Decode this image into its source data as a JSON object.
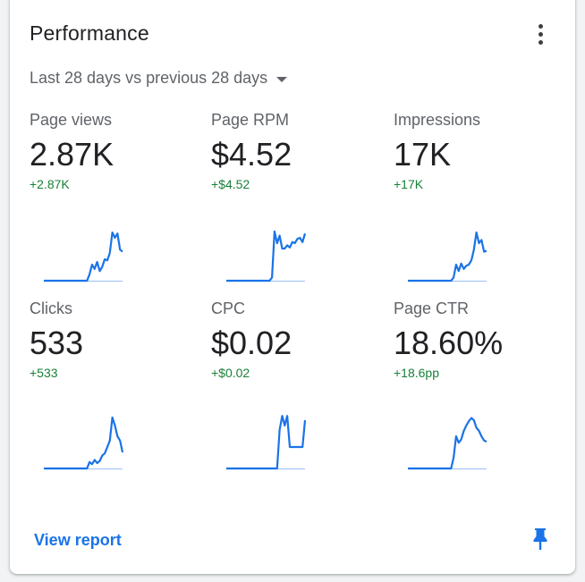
{
  "card": {
    "title": "Performance",
    "range_label": "Last 28 days vs previous 28 days",
    "view_report_label": "View report"
  },
  "metrics": [
    {
      "label": "Page views",
      "value": "2.87K",
      "delta": "+2.87K"
    },
    {
      "label": "Page RPM",
      "value": "$4.52",
      "delta": "+$4.52"
    },
    {
      "label": "Impressions",
      "value": "17K",
      "delta": "+17K"
    },
    {
      "label": "Clicks",
      "value": "533",
      "delta": "+533"
    },
    {
      "label": "CPC",
      "value": "$0.02",
      "delta": "+$0.02"
    },
    {
      "label": "Page CTR",
      "value": "18.60%",
      "delta": "+18.6pp"
    }
  ],
  "colors": {
    "accent": "#1a73e8",
    "line": "#1a73e8",
    "baseline": "#a8c7fa",
    "delta": "#188038"
  },
  "sparklines": [
    [
      0,
      0,
      0,
      0,
      0,
      0,
      0,
      0,
      0,
      0,
      0,
      0,
      0,
      0,
      0,
      0,
      0,
      0,
      12,
      30,
      22,
      35,
      18,
      26,
      40,
      38,
      52,
      90,
      80,
      88,
      58,
      54
    ],
    [
      0,
      0,
      0,
      0,
      0,
      0,
      0,
      0,
      0,
      0,
      0,
      0,
      0,
      0,
      0,
      0,
      0,
      0,
      6,
      92,
      70,
      84,
      60,
      60,
      66,
      62,
      72,
      70,
      78,
      80,
      72,
      88
    ],
    [
      0,
      0,
      0,
      0,
      0,
      0,
      0,
      0,
      0,
      0,
      0,
      0,
      0,
      0,
      0,
      0,
      0,
      0,
      6,
      30,
      18,
      32,
      22,
      28,
      30,
      38,
      58,
      90,
      70,
      76,
      54,
      56
    ],
    [
      0,
      0,
      0,
      0,
      0,
      0,
      0,
      0,
      0,
      0,
      0,
      0,
      0,
      0,
      0,
      0,
      0,
      0,
      12,
      8,
      16,
      10,
      14,
      24,
      28,
      40,
      52,
      95,
      80,
      60,
      52,
      30
    ],
    [
      0,
      0,
      0,
      0,
      0,
      0,
      0,
      0,
      0,
      0,
      0,
      0,
      0,
      0,
      0,
      0,
      0,
      0,
      0,
      0,
      0,
      72,
      98,
      80,
      98,
      40,
      40,
      40,
      40,
      40,
      40,
      90
    ],
    [
      0,
      0,
      0,
      0,
      0,
      0,
      0,
      0,
      0,
      0,
      0,
      0,
      0,
      0,
      0,
      0,
      0,
      0,
      20,
      60,
      48,
      54,
      70,
      80,
      88,
      94,
      90,
      76,
      70,
      60,
      52,
      50
    ]
  ]
}
